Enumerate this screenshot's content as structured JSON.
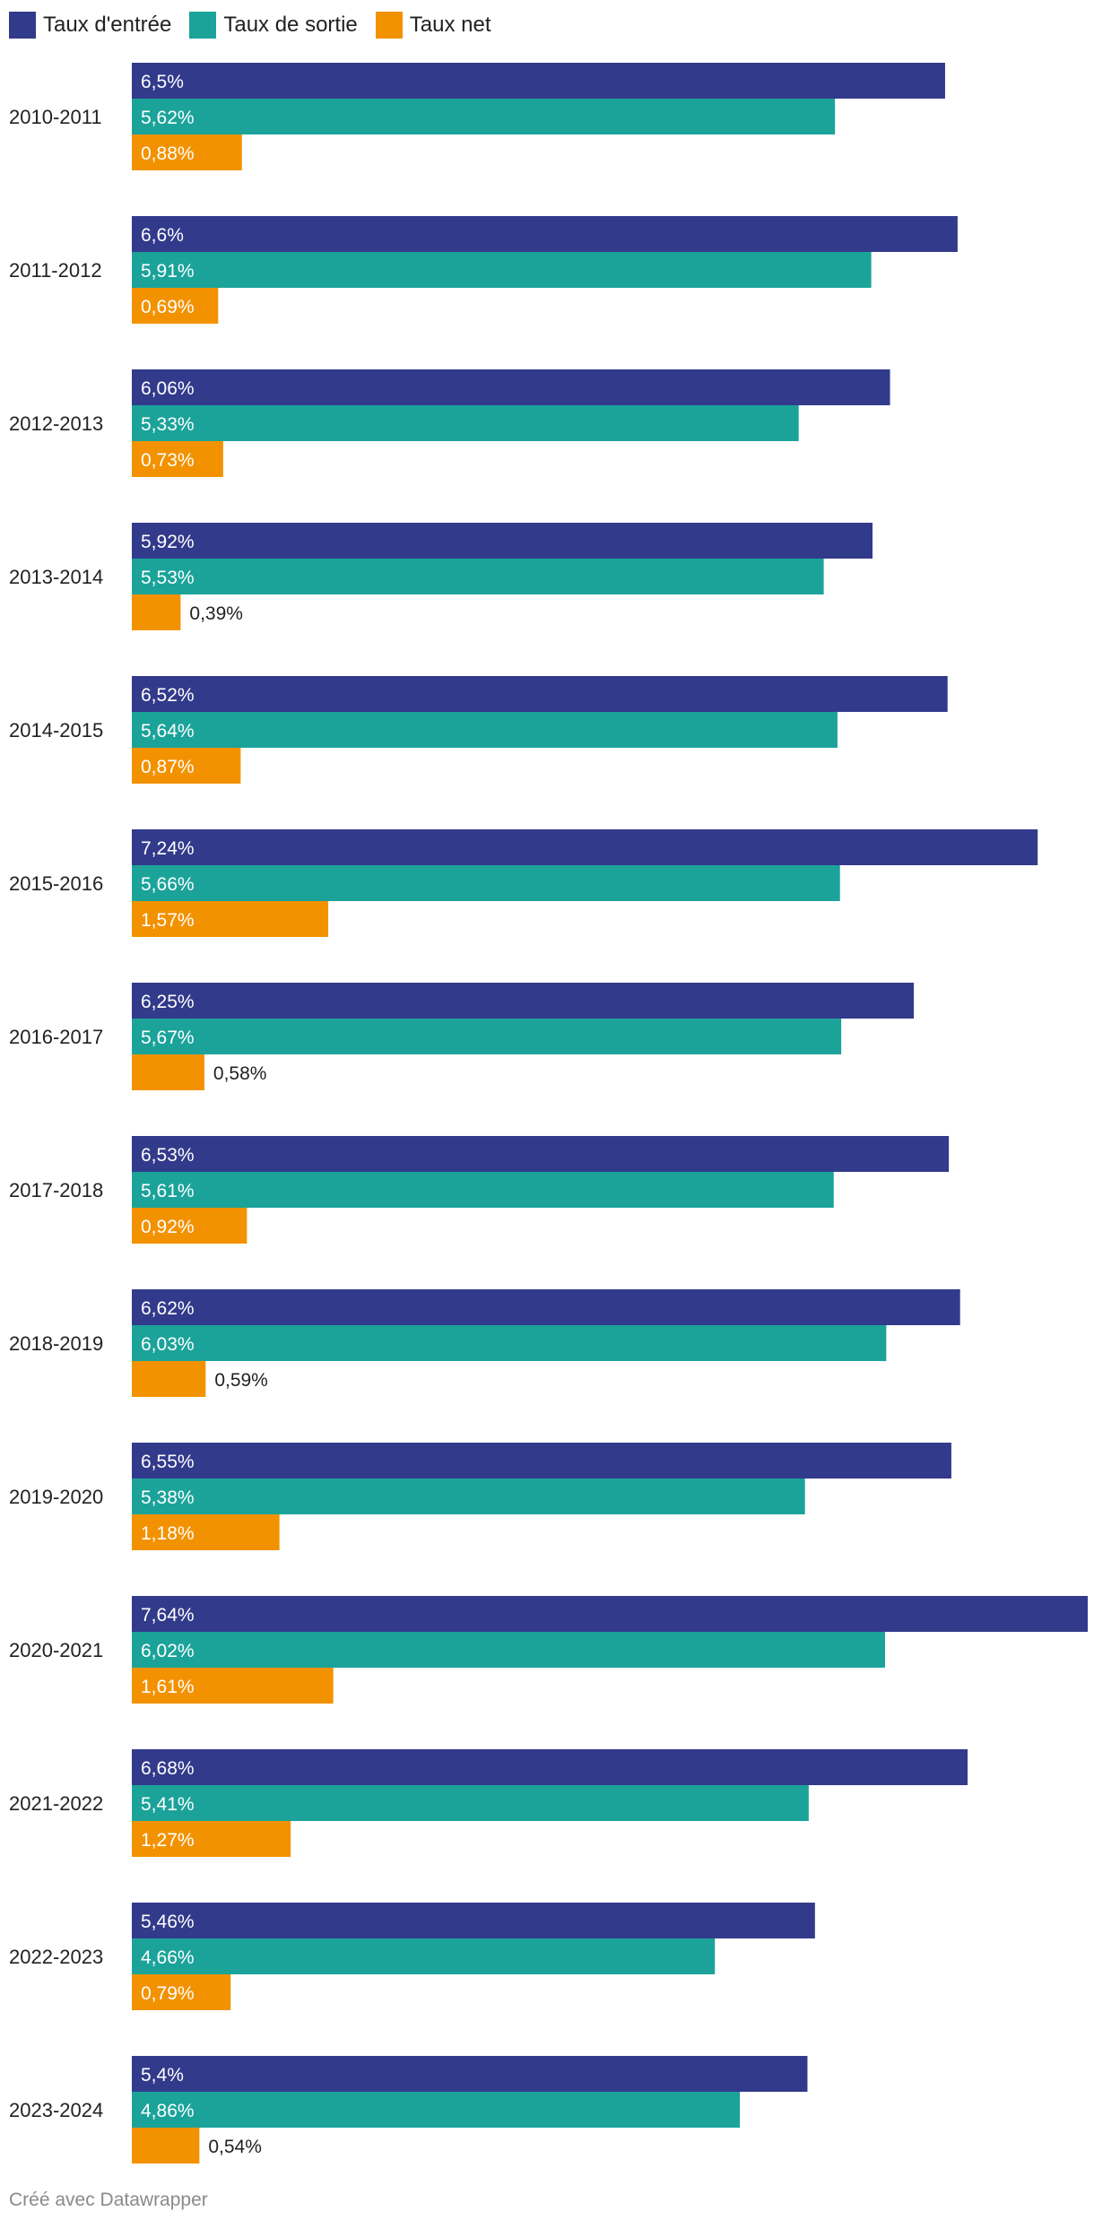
{
  "chart_data": {
    "type": "bar",
    "orientation": "horizontal",
    "grouped": true,
    "title": "",
    "xlabel": "",
    "ylabel": "",
    "xlim": [
      0,
      7.64
    ],
    "grid": false,
    "legend_position": "top-left",
    "categories": [
      "2010-2011",
      "2011-2012",
      "2012-2013",
      "2013-2014",
      "2014-2015",
      "2015-2016",
      "2016-2017",
      "2017-2018",
      "2018-2019",
      "2019-2020",
      "2020-2021",
      "2021-2022",
      "2022-2023",
      "2023-2024"
    ],
    "series": [
      {
        "name": "Taux d'entrée",
        "color": "#323a8b",
        "values": [
          6.5,
          6.6,
          6.06,
          5.92,
          6.52,
          7.24,
          6.25,
          6.53,
          6.62,
          6.55,
          7.64,
          6.68,
          5.46,
          5.4
        ],
        "labels": [
          "6,5%",
          "6,6%",
          "6,06%",
          "5,92%",
          "6,52%",
          "7,24%",
          "6,25%",
          "6,53%",
          "6,62%",
          "6,55%",
          "7,64%",
          "6,68%",
          "5,46%",
          "5,4%"
        ]
      },
      {
        "name": "Taux de sortie",
        "color": "#1ba39a",
        "values": [
          5.62,
          5.91,
          5.33,
          5.53,
          5.64,
          5.66,
          5.67,
          5.61,
          6.03,
          5.38,
          6.02,
          5.41,
          4.66,
          4.86
        ],
        "labels": [
          "5,62%",
          "5,91%",
          "5,33%",
          "5,53%",
          "5,64%",
          "5,66%",
          "5,67%",
          "5,61%",
          "6,03%",
          "5,38%",
          "6,02%",
          "5,41%",
          "4,66%",
          "4,86%"
        ]
      },
      {
        "name": "Taux net",
        "color": "#f39200",
        "values": [
          0.88,
          0.69,
          0.73,
          0.39,
          0.87,
          1.57,
          0.58,
          0.92,
          0.59,
          1.18,
          1.61,
          1.27,
          0.79,
          0.54
        ],
        "labels": [
          "0,88%",
          "0,69%",
          "0,73%",
          "0,39%",
          "0,87%",
          "1,57%",
          "0,58%",
          "0,92%",
          "0,59%",
          "1,18%",
          "1,61%",
          "1,27%",
          "0,79%",
          "0,54%"
        ]
      }
    ]
  },
  "footer": {
    "credit": "Créé avec Datawrapper"
  }
}
